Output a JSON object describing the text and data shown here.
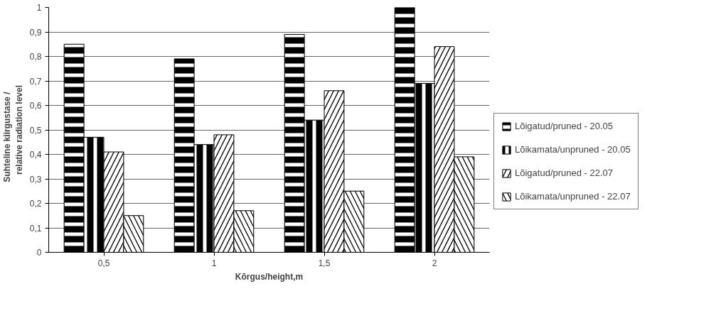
{
  "chart_data": {
    "type": "bar",
    "xlabel": "Kõrgus/height,m",
    "ylabel": "Suhteline kiirgustase       /\nrelative radiation level",
    "categories": [
      "0,5",
      "1",
      "1,5",
      "2"
    ],
    "series": [
      {
        "name": "Lõigatud/pruned - 20.05",
        "color": "#000000",
        "values": [
          0.85,
          0.79,
          0.89,
          1.0
        ]
      },
      {
        "name": "Lõikamata/unpruned - 20.05",
        "color": "#000000",
        "values": [
          0.47,
          0.44,
          0.54,
          0.69
        ]
      },
      {
        "name": "Lõigatud/pruned - 22.07",
        "color": "#000000",
        "values": [
          0.41,
          0.48,
          0.66,
          0.84
        ]
      },
      {
        "name": "Lõikamata/unpruned - 22.07",
        "color": "#000000",
        "values": [
          0.15,
          0.17,
          0.25,
          0.39
        ]
      }
    ],
    "ylim": [
      0,
      1
    ],
    "yticks": [
      0,
      {
        "value": 0.1,
        "label": "0,1"
      },
      {
        "value": 0.2,
        "label": "0,2"
      },
      {
        "value": 0.3,
        "label": "0,3"
      },
      {
        "value": 0.4,
        "label": "0,4"
      },
      {
        "value": 0.5,
        "label": "0,5"
      },
      {
        "value": 0.6,
        "label": "0,6"
      },
      {
        "value": 0.7,
        "label": "0,7"
      },
      {
        "value": 0.8,
        "label": "0,8"
      },
      {
        "value": 0.9,
        "label": "0,9"
      },
      1
    ],
    "grid": "y",
    "legend": "right"
  }
}
